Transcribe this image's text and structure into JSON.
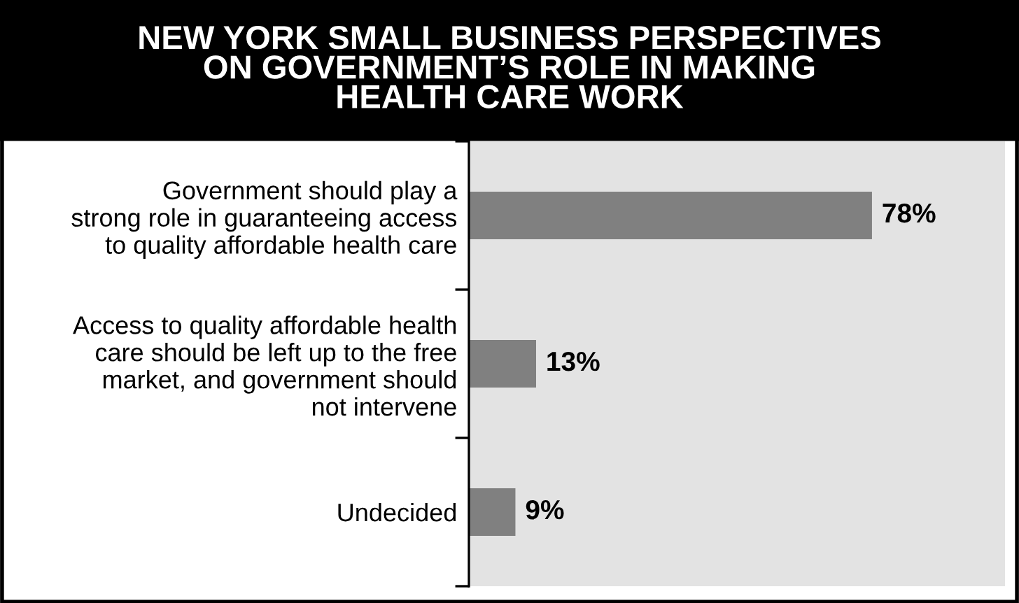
{
  "chart_data": {
    "type": "bar",
    "orientation": "horizontal",
    "title": "NEW YORK SMALL BUSINESS PERSPECTIVES\nON GOVERNMENT’S ROLE IN MAKING\nHEALTH CARE WORK",
    "categories": [
      "Government should play a\nstrong role in guaranteeing access\nto quality affordable health care",
      "Access to quality affordable health\ncare should be left up to the free\nmarket, and government should\nnot intervene",
      "Undecided"
    ],
    "values": [
      78,
      13,
      9
    ],
    "value_labels": [
      "78%",
      "13%",
      "9%"
    ],
    "color": "#808080",
    "grid": false,
    "legend": false,
    "tick_labels": "y"
  }
}
